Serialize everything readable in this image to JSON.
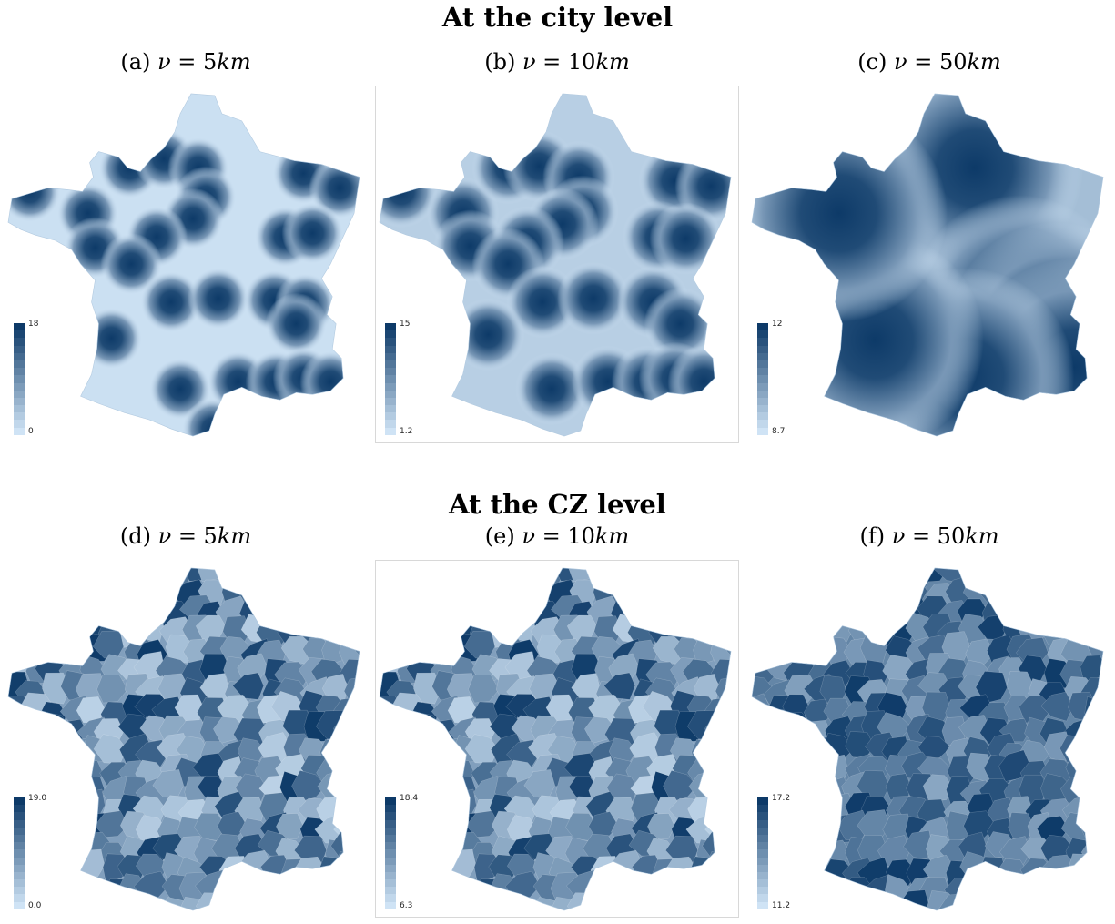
{
  "colors": {
    "low": "#cfe3f5",
    "high": "#0d3a68",
    "outline": "#d8d8d8"
  },
  "sections": [
    {
      "title": "At the city level",
      "panels": [
        {
          "id": "a",
          "label": "(a)",
          "nu": "ν",
          "eq": " = 5",
          "unit": "km",
          "legend_max": "18",
          "legend_min": "0",
          "pattern": "city-small"
        },
        {
          "id": "b",
          "label": "(b)",
          "nu": "ν",
          "eq": " = 10",
          "unit": "km",
          "legend_max": "15",
          "legend_min": "1.2",
          "pattern": "city-medium"
        },
        {
          "id": "c",
          "label": "(c)",
          "nu": "ν",
          "eq": " = 50",
          "unit": "km",
          "legend_max": "12",
          "legend_min": "8.7",
          "pattern": "city-large"
        }
      ]
    },
    {
      "title": "At the CZ level",
      "panels": [
        {
          "id": "d",
          "label": "(d)",
          "nu": "ν",
          "eq": " = 5",
          "unit": "km",
          "legend_max": "19.0",
          "legend_min": "0.0",
          "pattern": "cz"
        },
        {
          "id": "e",
          "label": "(e)",
          "nu": "ν",
          "eq": " = 10",
          "unit": "km",
          "legend_max": "18.4",
          "legend_min": "6.3",
          "pattern": "cz"
        },
        {
          "id": "f",
          "label": "(f)",
          "nu": "ν",
          "eq": " = 50",
          "unit": "km",
          "legend_max": "17.2",
          "legend_min": "11.2",
          "pattern": "cz-dark"
        }
      ]
    }
  ]
}
